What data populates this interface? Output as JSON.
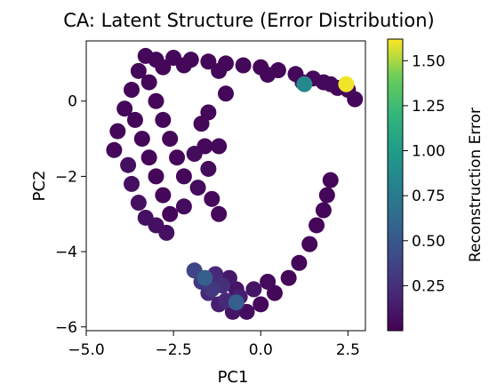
{
  "chart_data": {
    "type": "scatter",
    "title": "CA: Latent Structure (Error Distribution)",
    "xlabel": "PC1",
    "ylabel": "PC2",
    "xlim": [
      -5.0,
      3.0
    ],
    "ylim": [
      -6.1,
      1.6
    ],
    "xticks": [
      -5.0,
      -2.5,
      0.0,
      2.5
    ],
    "xtick_labels": [
      "−5.0",
      "−2.5",
      "0.0",
      "2.5"
    ],
    "yticks": [
      0,
      -2,
      -4,
      -6
    ],
    "ytick_labels": [
      "0",
      "−2",
      "−4",
      "−6"
    ],
    "grid": false,
    "legend": "none",
    "colormap": "viridis",
    "colorbar": {
      "label": "Reconstruction Error",
      "range": [
        0.0,
        1.62
      ],
      "ticks": [
        0.25,
        0.5,
        0.75,
        1.0,
        1.25,
        1.5
      ],
      "tick_labels": [
        "0.25",
        "0.50",
        "0.75",
        "1.00",
        "1.25",
        "1.50"
      ]
    },
    "points": [
      {
        "x": -3.0,
        "y": 1.1,
        "e": 0.03
      },
      {
        "x": -2.5,
        "y": 1.15,
        "e": 0.03
      },
      {
        "x": -2.0,
        "y": 1.1,
        "e": 0.03
      },
      {
        "x": -1.5,
        "y": 1.05,
        "e": 0.03
      },
      {
        "x": -1.0,
        "y": 1.0,
        "e": 0.03
      },
      {
        "x": -0.5,
        "y": 0.95,
        "e": 0.03
      },
      {
        "x": 0.0,
        "y": 0.9,
        "e": 0.03
      },
      {
        "x": 0.5,
        "y": 0.82,
        "e": 0.03
      },
      {
        "x": 1.0,
        "y": 0.72,
        "e": 0.03
      },
      {
        "x": 1.5,
        "y": 0.6,
        "e": 0.04
      },
      {
        "x": 2.0,
        "y": 0.45,
        "e": 0.04
      },
      {
        "x": 2.5,
        "y": 0.3,
        "e": 0.04
      },
      {
        "x": 2.7,
        "y": 0.05,
        "e": 0.03
      },
      {
        "x": 2.2,
        "y": 0.35,
        "e": 0.03
      },
      {
        "x": 1.8,
        "y": 0.5,
        "e": 0.03
      },
      {
        "x": -2.8,
        "y": 0.9,
        "e": 0.03
      },
      {
        "x": -2.2,
        "y": 0.95,
        "e": 0.03
      },
      {
        "x": -1.2,
        "y": 0.8,
        "e": 0.03
      },
      {
        "x": 0.2,
        "y": 0.7,
        "e": 0.03
      },
      {
        "x": 1.2,
        "y": 0.5,
        "e": 0.03
      },
      {
        "x": 1.25,
        "y": 0.45,
        "e": 0.85
      },
      {
        "x": 2.45,
        "y": 0.45,
        "e": 1.6
      },
      {
        "x": -3.3,
        "y": 1.2,
        "e": 0.03
      },
      {
        "x": -3.5,
        "y": 0.8,
        "e": 0.03
      },
      {
        "x": -3.7,
        "y": 0.3,
        "e": 0.03
      },
      {
        "x": -3.9,
        "y": -0.2,
        "e": 0.03
      },
      {
        "x": -4.1,
        "y": -0.8,
        "e": 0.03
      },
      {
        "x": -4.2,
        "y": -1.3,
        "e": 0.03
      },
      {
        "x": -3.2,
        "y": 0.5,
        "e": 0.03
      },
      {
        "x": -3.0,
        "y": 0.0,
        "e": 0.03
      },
      {
        "x": -2.8,
        "y": -0.5,
        "e": 0.03
      },
      {
        "x": -2.6,
        "y": -1.0,
        "e": 0.03
      },
      {
        "x": -2.4,
        "y": -1.5,
        "e": 0.03
      },
      {
        "x": -2.2,
        "y": -2.0,
        "e": 0.03
      },
      {
        "x": -3.6,
        "y": -0.5,
        "e": 0.03
      },
      {
        "x": -3.4,
        "y": -1.0,
        "e": 0.03
      },
      {
        "x": -3.2,
        "y": -1.5,
        "e": 0.03
      },
      {
        "x": -3.0,
        "y": -2.0,
        "e": 0.03
      },
      {
        "x": -2.8,
        "y": -2.5,
        "e": 0.03
      },
      {
        "x": -2.6,
        "y": -3.0,
        "e": 0.03
      },
      {
        "x": -3.8,
        "y": -1.7,
        "e": 0.08
      },
      {
        "x": -3.7,
        "y": -2.2,
        "e": 0.08
      },
      {
        "x": -3.5,
        "y": -2.7,
        "e": 0.08
      },
      {
        "x": -3.3,
        "y": -3.1,
        "e": 0.08
      },
      {
        "x": -3.0,
        "y": -3.3,
        "e": 0.08
      },
      {
        "x": -2.7,
        "y": -3.5,
        "e": 0.08
      },
      {
        "x": -2.2,
        "y": -2.8,
        "e": 0.05
      },
      {
        "x": -1.8,
        "y": -2.3,
        "e": 0.05
      },
      {
        "x": -1.5,
        "y": -1.8,
        "e": 0.05
      },
      {
        "x": -1.9,
        "y": -1.4,
        "e": 0.05
      },
      {
        "x": -1.6,
        "y": -1.2,
        "e": 0.04
      },
      {
        "x": -1.5,
        "y": -0.3,
        "e": 0.03
      },
      {
        "x": -1.7,
        "y": -0.6,
        "e": 0.03
      },
      {
        "x": -1.0,
        "y": 0.2,
        "e": 0.03
      },
      {
        "x": -1.2,
        "y": -1.2,
        "e": 0.04
      },
      {
        "x": -1.4,
        "y": -2.6,
        "e": 0.04
      },
      {
        "x": -1.2,
        "y": -3.0,
        "e": 0.04
      },
      {
        "x": 2.0,
        "y": -2.1,
        "e": 0.03
      },
      {
        "x": 1.9,
        "y": -2.5,
        "e": 0.03
      },
      {
        "x": 1.8,
        "y": -2.9,
        "e": 0.03
      },
      {
        "x": 1.6,
        "y": -3.3,
        "e": 0.03
      },
      {
        "x": 1.4,
        "y": -3.8,
        "e": 0.03
      },
      {
        "x": 1.1,
        "y": -4.3,
        "e": 0.03
      },
      {
        "x": 0.8,
        "y": -4.7,
        "e": 0.03
      },
      {
        "x": 0.4,
        "y": -5.1,
        "e": 0.03
      },
      {
        "x": 0.0,
        "y": -5.4,
        "e": 0.04
      },
      {
        "x": -0.4,
        "y": -5.6,
        "e": 0.06
      },
      {
        "x": -0.8,
        "y": -5.6,
        "e": 0.1
      },
      {
        "x": -1.2,
        "y": -5.4,
        "e": 0.15
      },
      {
        "x": -1.5,
        "y": -5.1,
        "e": 0.2
      },
      {
        "x": -1.7,
        "y": -4.8,
        "e": 0.3
      },
      {
        "x": -1.9,
        "y": -4.5,
        "e": 0.38
      },
      {
        "x": -1.6,
        "y": -4.7,
        "e": 0.55
      },
      {
        "x": -1.4,
        "y": -5.0,
        "e": 0.3
      },
      {
        "x": -1.0,
        "y": -5.3,
        "e": 0.2
      },
      {
        "x": -0.6,
        "y": -5.2,
        "e": 0.15
      },
      {
        "x": -0.2,
        "y": -5.0,
        "e": 0.1
      },
      {
        "x": 0.2,
        "y": -4.8,
        "e": 0.05
      },
      {
        "x": -0.7,
        "y": -5.0,
        "e": 0.1
      },
      {
        "x": -1.1,
        "y": -4.9,
        "e": 0.25
      },
      {
        "x": -0.7,
        "y": -5.35,
        "e": 0.55
      },
      {
        "x": -1.3,
        "y": -4.6,
        "e": 0.2
      },
      {
        "x": -0.9,
        "y": -4.7,
        "e": 0.12
      }
    ]
  }
}
